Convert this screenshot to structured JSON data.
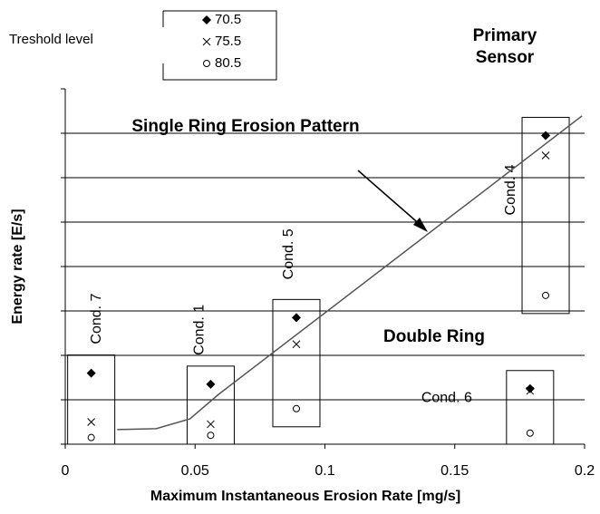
{
  "chart_data": {
    "type": "scatter",
    "x_label": "Maximum Instantaneous Erosion Rate [mg/s]",
    "y_label": "Energy rate  [E/s]",
    "legend_title": "Treshold level",
    "annotations": [
      "Single Ring Erosion Pattern",
      "Double Ring",
      "Primary",
      "Sensor"
    ],
    "point_labels": [
      "Cond. 7",
      "Cond. 1",
      "Cond. 5",
      "Cond. 4",
      "Cond. 6"
    ],
    "x": [
      0.01,
      0.056,
      0.089,
      0.185,
      0.179
    ],
    "series": [
      {
        "name": "70.5",
        "marker": "diamond",
        "color": "#000000",
        "values": [
          1.6,
          1.35,
          2.85,
          6.95,
          1.25
        ]
      },
      {
        "name": "75.5",
        "marker": "cross",
        "color": "#000000",
        "values": [
          0.5,
          0.45,
          2.25,
          6.5,
          1.2
        ]
      },
      {
        "name": "80.5",
        "marker": "circle",
        "color": "#000000",
        "values": [
          0.15,
          0.2,
          0.8,
          3.35,
          0.25
        ]
      }
    ],
    "trend_line": {
      "x": [
        0.02,
        0.035,
        0.048,
        0.059,
        0.199
      ],
      "values": [
        0.33,
        0.35,
        0.57,
        1.12,
        7.39
      ]
    },
    "xlim": [
      0,
      0.2
    ],
    "xticks": [
      0,
      0.05,
      0.1,
      0.15,
      0.2
    ],
    "ylim": [
      0,
      8
    ],
    "yticks": [
      0,
      1,
      2,
      3,
      4,
      5,
      6,
      7,
      8
    ],
    "grid": true
  }
}
